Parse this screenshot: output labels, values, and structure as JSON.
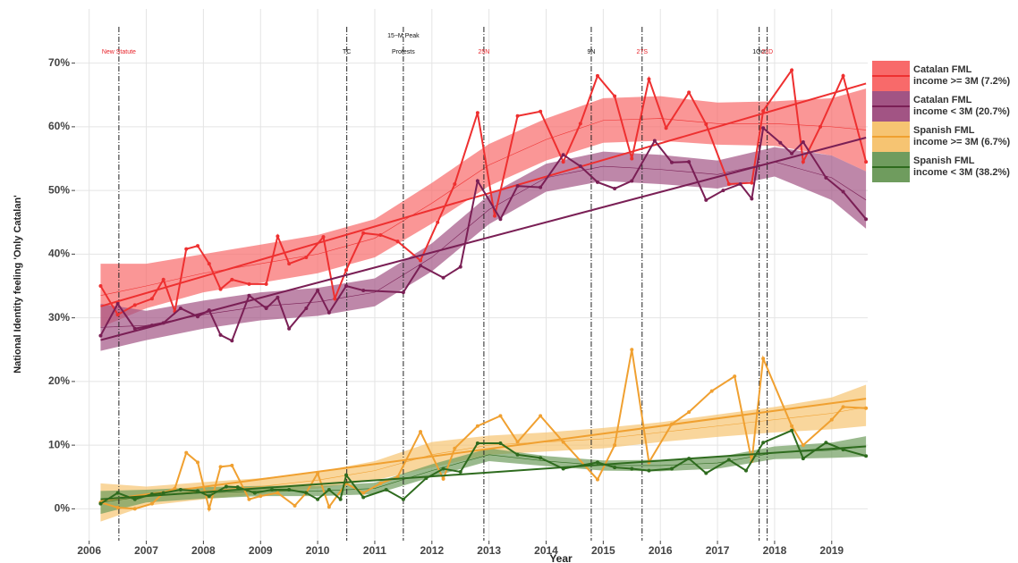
{
  "chart_data": {
    "type": "line",
    "x_label": "Year",
    "y_label": "National Identity feeling 'Only Catalan'",
    "xlim": [
      2005.77,
      2019.63
    ],
    "xticks": [
      2006,
      2007,
      2008,
      2009,
      2010,
      2011,
      2012,
      2013,
      2014,
      2015,
      2016,
      2017,
      2018,
      2019
    ],
    "ylim": [
      -5,
      75
    ],
    "yticks": [
      {
        "value": 0,
        "label": "0%"
      },
      {
        "value": 10,
        "label": "10%"
      },
      {
        "value": 20,
        "label": "20%"
      },
      {
        "value": 30,
        "label": "30%"
      },
      {
        "value": 40,
        "label": "40%"
      },
      {
        "value": 50,
        "label": "50%"
      },
      {
        "value": 60,
        "label": "60%"
      },
      {
        "value": 70,
        "label": "70%"
      }
    ],
    "grid": true,
    "legend": "right",
    "events": [
      {
        "x": 2006.52,
        "label": [
          "New Statute"
        ],
        "color": "#e8232a"
      },
      {
        "x": 2010.51,
        "label": [
          "TC"
        ],
        "color": "#111111"
      },
      {
        "x": 2011.5,
        "label": [
          "15−M Peak",
          "Protests"
        ],
        "color": "#111111"
      },
      {
        "x": 2012.91,
        "label": [
          "25N"
        ],
        "color": "#e8232a"
      },
      {
        "x": 2014.79,
        "label": [
          "9N"
        ],
        "color": "#111111"
      },
      {
        "x": 2015.68,
        "label": [
          "27S"
        ],
        "color": "#e8232a"
      },
      {
        "x": 2017.73,
        "label": [
          "1Oct"
        ],
        "color": "#111111"
      },
      {
        "x": 2017.87,
        "label": [
          "21D"
        ],
        "color": "#e8232a"
      }
    ],
    "series": [
      {
        "name": "Catalan FML\nincome >= 3M (7.2%)",
        "color": "#ee3030",
        "band_color": "#f86a6a",
        "x": [
          2006.2,
          2006.5,
          2006.8,
          2007.1,
          2007.3,
          2007.5,
          2007.7,
          2007.9,
          2008.1,
          2008.3,
          2008.5,
          2008.8,
          2009.1,
          2009.3,
          2009.5,
          2009.8,
          2010.1,
          2010.3,
          2010.5,
          2010.8,
          2011.1,
          2011.4,
          2011.8,
          2012.1,
          2012.4,
          2012.8,
          2013.1,
          2013.5,
          2013.9,
          2014.3,
          2014.6,
          2014.9,
          2015.2,
          2015.5,
          2015.8,
          2016.1,
          2016.5,
          2016.8,
          2017.2,
          2017.6,
          2017.8,
          2018.3,
          2018.5,
          2018.8,
          2019.2,
          2019.6
        ],
        "values": [
          35,
          30.5,
          32,
          33,
          36,
          31,
          40.8,
          41.3,
          38.5,
          34.5,
          36,
          35.3,
          35.3,
          42.8,
          38.5,
          39.5,
          42.7,
          33,
          37.5,
          43.3,
          43,
          42,
          39,
          45,
          51,
          62.2,
          46,
          61.7,
          62.4,
          54.5,
          60.5,
          68,
          64.8,
          55,
          67.5,
          59.8,
          65.4,
          60.4,
          51,
          51.2,
          62.5,
          68.9,
          54.5,
          60,
          68,
          54.5
        ],
        "trend": {
          "x": [
            2006.2,
            2019.6
          ],
          "values": [
            31.8,
            66.8
          ]
        },
        "band": {
          "x": [
            2006.2,
            2007,
            2008,
            2009,
            2010,
            2011,
            2012,
            2013,
            2014,
            2015,
            2016,
            2017,
            2018,
            2019,
            2019.6
          ],
          "fit": [
            33.5,
            35,
            37,
            38.5,
            40,
            42.5,
            48,
            54,
            58,
            61,
            61.3,
            60.5,
            60.5,
            60,
            59.5
          ],
          "lower": [
            28.5,
            31.5,
            34,
            35.5,
            37,
            39.5,
            44.8,
            50.7,
            54.7,
            57.5,
            57.8,
            57.2,
            57,
            55.5,
            53
          ],
          "upper": [
            38.5,
            38.5,
            40,
            41.5,
            43,
            45.5,
            51.2,
            57.3,
            61.3,
            64.5,
            64.8,
            63.8,
            64,
            64.5,
            66
          ]
        }
      },
      {
        "name": "Catalan FML\nincome < 3M (20.7%)",
        "color": "#7a1f55",
        "band_color": "#a25484",
        "x": [
          2006.2,
          2006.5,
          2006.8,
          2007.1,
          2007.3,
          2007.6,
          2007.9,
          2008.1,
          2008.3,
          2008.5,
          2008.8,
          2009.1,
          2009.3,
          2009.5,
          2009.8,
          2010.0,
          2010.2,
          2010.5,
          2010.8,
          2011.5,
          2011.8,
          2012.2,
          2012.5,
          2012.8,
          2013.2,
          2013.5,
          2013.9,
          2014.3,
          2014.6,
          2014.9,
          2015.2,
          2015.5,
          2015.9,
          2016.2,
          2016.5,
          2016.8,
          2017.1,
          2017.4,
          2017.6,
          2017.8,
          2018.1,
          2018.3,
          2018.5,
          2018.9,
          2019.2,
          2019.6
        ],
        "values": [
          27.2,
          32.2,
          28.3,
          28.8,
          29.2,
          31.5,
          30.2,
          31.2,
          27.3,
          26.4,
          33.5,
          31.5,
          33.2,
          28.3,
          31.5,
          34.3,
          30.8,
          35,
          34.3,
          34,
          38.2,
          36.3,
          38,
          51.5,
          45.5,
          50.7,
          50.5,
          55.6,
          53.8,
          51.3,
          50.3,
          51.5,
          57.8,
          54.4,
          54.5,
          48.5,
          50,
          51,
          48.7,
          59.8,
          57.5,
          55.8,
          57.6,
          52,
          49.8,
          45.5
        ],
        "trend": {
          "x": [
            2006.2,
            2019.6
          ],
          "values": [
            26.5,
            58.3
          ]
        },
        "band": {
          "x": [
            2006.2,
            2007,
            2008,
            2009,
            2010,
            2011,
            2012,
            2013,
            2014,
            2015,
            2016,
            2017,
            2018,
            2019,
            2019.6
          ],
          "fit": [
            28.5,
            28.8,
            30.5,
            31.8,
            32.5,
            34,
            39.5,
            47,
            52,
            53.8,
            53.3,
            52.5,
            54.5,
            52,
            48.5
          ],
          "lower": [
            24.8,
            26.5,
            28.3,
            29.6,
            30.3,
            31.8,
            37.3,
            44.7,
            49.8,
            51.5,
            51,
            50.3,
            52.2,
            48.5,
            44
          ],
          "upper": [
            32.2,
            31.1,
            32.7,
            34,
            34.7,
            36.2,
            41.7,
            49.3,
            54.2,
            56.1,
            55.6,
            54.7,
            56.8,
            55.5,
            53
          ]
        }
      },
      {
        "name": "Spanish FML\nincome >= 3M (6.7%)",
        "color": "#f0a030",
        "band_color": "#f6c472",
        "x": [
          2006.2,
          2006.5,
          2006.8,
          2007.1,
          2007.3,
          2007.5,
          2007.7,
          2007.9,
          2008.1,
          2008.3,
          2008.5,
          2008.8,
          2009.0,
          2009.3,
          2009.6,
          2009.8,
          2010.0,
          2010.2,
          2010.5,
          2010.8,
          2011.1,
          2011.4,
          2011.8,
          2012.2,
          2012.4,
          2012.8,
          2013.2,
          2013.5,
          2013.9,
          2014.3,
          2014.9,
          2015.2,
          2015.5,
          2015.8,
          2016.2,
          2016.5,
          2016.9,
          2017.3,
          2017.6,
          2017.8,
          2018.3,
          2018.5,
          2019.0,
          2019.2,
          2019.6
        ],
        "values": [
          1,
          0.2,
          0,
          0.8,
          2.5,
          3.2,
          8.8,
          7.3,
          0,
          6.6,
          6.8,
          1.5,
          2,
          2.5,
          0.5,
          2.5,
          5.6,
          0.3,
          4,
          2.5,
          4,
          5,
          12.1,
          4.7,
          9.5,
          13,
          14.6,
          10.5,
          14.6,
          10.5,
          4.6,
          10,
          25,
          7.3,
          13.3,
          15.2,
          18.5,
          20.8,
          7.5,
          23.6,
          13,
          10,
          14,
          16,
          15.8
        ],
        "trend": {
          "x": [
            2006.2,
            2019.6
          ],
          "values": [
            1.3,
            17.3
          ]
        },
        "band": {
          "x": [
            2006.2,
            2007,
            2008,
            2009,
            2010,
            2011,
            2012,
            2013,
            2014,
            2015,
            2016,
            2017,
            2018,
            2019,
            2019.6
          ],
          "fit": [
            1,
            2,
            2.8,
            3.5,
            4.5,
            6,
            8.5,
            10,
            10.5,
            11,
            12,
            13,
            14,
            15,
            16
          ],
          "lower": [
            -2,
            0.5,
            1.5,
            2.3,
            3.2,
            4.5,
            6.5,
            8.5,
            9,
            9.5,
            10.5,
            11.3,
            12,
            12.5,
            13
          ],
          "upper": [
            4,
            3.5,
            4.2,
            4.8,
            5.8,
            7.5,
            10.5,
            11.5,
            12,
            12.7,
            13.6,
            14.8,
            16,
            17.5,
            19.5
          ]
        }
      },
      {
        "name": "Spanish FML\nincome < 3M (38.2%)",
        "color": "#2e6b1e",
        "band_color": "#6f9c5e",
        "x": [
          2006.2,
          2006.5,
          2006.8,
          2007.1,
          2007.3,
          2007.6,
          2007.9,
          2008.1,
          2008.4,
          2008.6,
          2008.9,
          2009.2,
          2009.5,
          2009.8,
          2010.0,
          2010.2,
          2010.4,
          2010.5,
          2010.8,
          2011.2,
          2011.5,
          2011.9,
          2012.2,
          2012.5,
          2012.8,
          2013.2,
          2013.5,
          2013.9,
          2014.3,
          2014.9,
          2015.2,
          2015.5,
          2015.8,
          2016.2,
          2016.5,
          2016.8,
          2017.2,
          2017.5,
          2017.8,
          2018.3,
          2018.5,
          2018.9,
          2019.2,
          2019.6
        ],
        "values": [
          0.8,
          2.5,
          1.5,
          2.3,
          2.5,
          3,
          2.8,
          2,
          3.5,
          3.4,
          2.5,
          3,
          3,
          2.5,
          1.5,
          3,
          1.5,
          5.3,
          1.8,
          3,
          1.5,
          4.8,
          6.3,
          5.8,
          10.3,
          10.3,
          8.5,
          8,
          6.3,
          7.3,
          6.5,
          6.3,
          6,
          6.3,
          7.9,
          5.6,
          7.7,
          6,
          10.4,
          12.3,
          7.9,
          10.4,
          9.3,
          8.3
        ],
        "trend": {
          "x": [
            2006.2,
            2019.6
          ],
          "values": [
            1.5,
            9.8
          ]
        },
        "band": {
          "x": [
            2006.2,
            2007,
            2008,
            2009,
            2010,
            2011,
            2012,
            2013,
            2014,
            2015,
            2016,
            2017,
            2018,
            2019,
            2019.6
          ],
          "fit": [
            1,
            2,
            2.5,
            2.8,
            2.8,
            3.2,
            6,
            8.5,
            7.5,
            6.8,
            6.8,
            7.2,
            8.8,
            9.2,
            9.8
          ],
          "lower": [
            -0.8,
            1,
            1.6,
            2,
            2,
            2.3,
            5,
            7.5,
            6.7,
            6,
            5.9,
            6.3,
            7.8,
            8,
            8.2
          ],
          "upper": [
            2.8,
            3,
            3.4,
            3.6,
            3.6,
            4.1,
            7,
            9.5,
            8.3,
            7.6,
            7.7,
            8.1,
            9.8,
            10.4,
            11.4
          ]
        }
      }
    ]
  }
}
